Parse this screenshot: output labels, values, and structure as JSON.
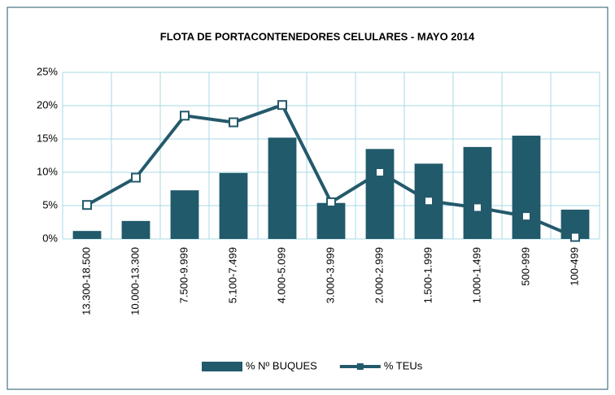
{
  "chart_data": {
    "type": "bar",
    "title": "FLOTA DE PORTACONTENEDORES CELULARES - MAYO 2014",
    "categories": [
      "13.300-18.500",
      "10.000-13.300",
      "7.500-9.999",
      "5.100-7.499",
      "4.000-5.099",
      "3.000-3.999",
      "2.000-2.999",
      "1.500-1.999",
      "1.000-1.499",
      "500-999",
      "100-499"
    ],
    "series": [
      {
        "name": "% Nº BUQUES",
        "type": "bar",
        "color": "#215a6a",
        "values": [
          1.2,
          2.7,
          7.3,
          9.9,
          15.2,
          5.4,
          13.5,
          11.3,
          13.8,
          15.5,
          4.4
        ]
      },
      {
        "name": "% TEUs",
        "type": "line",
        "color": "#24596b",
        "values": [
          5.1,
          9.2,
          18.5,
          17.5,
          20.1,
          5.5,
          10.0,
          5.7,
          4.7,
          3.4,
          0.3
        ]
      }
    ],
    "ylim": [
      0,
      25
    ],
    "yticks": [
      {
        "value": 0,
        "label": "0%"
      },
      {
        "value": 5,
        "label": "5%"
      },
      {
        "value": 10,
        "label": "10%"
      },
      {
        "value": 15,
        "label": "15%"
      },
      {
        "value": 20,
        "label": "20%"
      },
      {
        "value": 25,
        "label": "25%"
      }
    ],
    "grid": true,
    "legend": "bottom"
  }
}
